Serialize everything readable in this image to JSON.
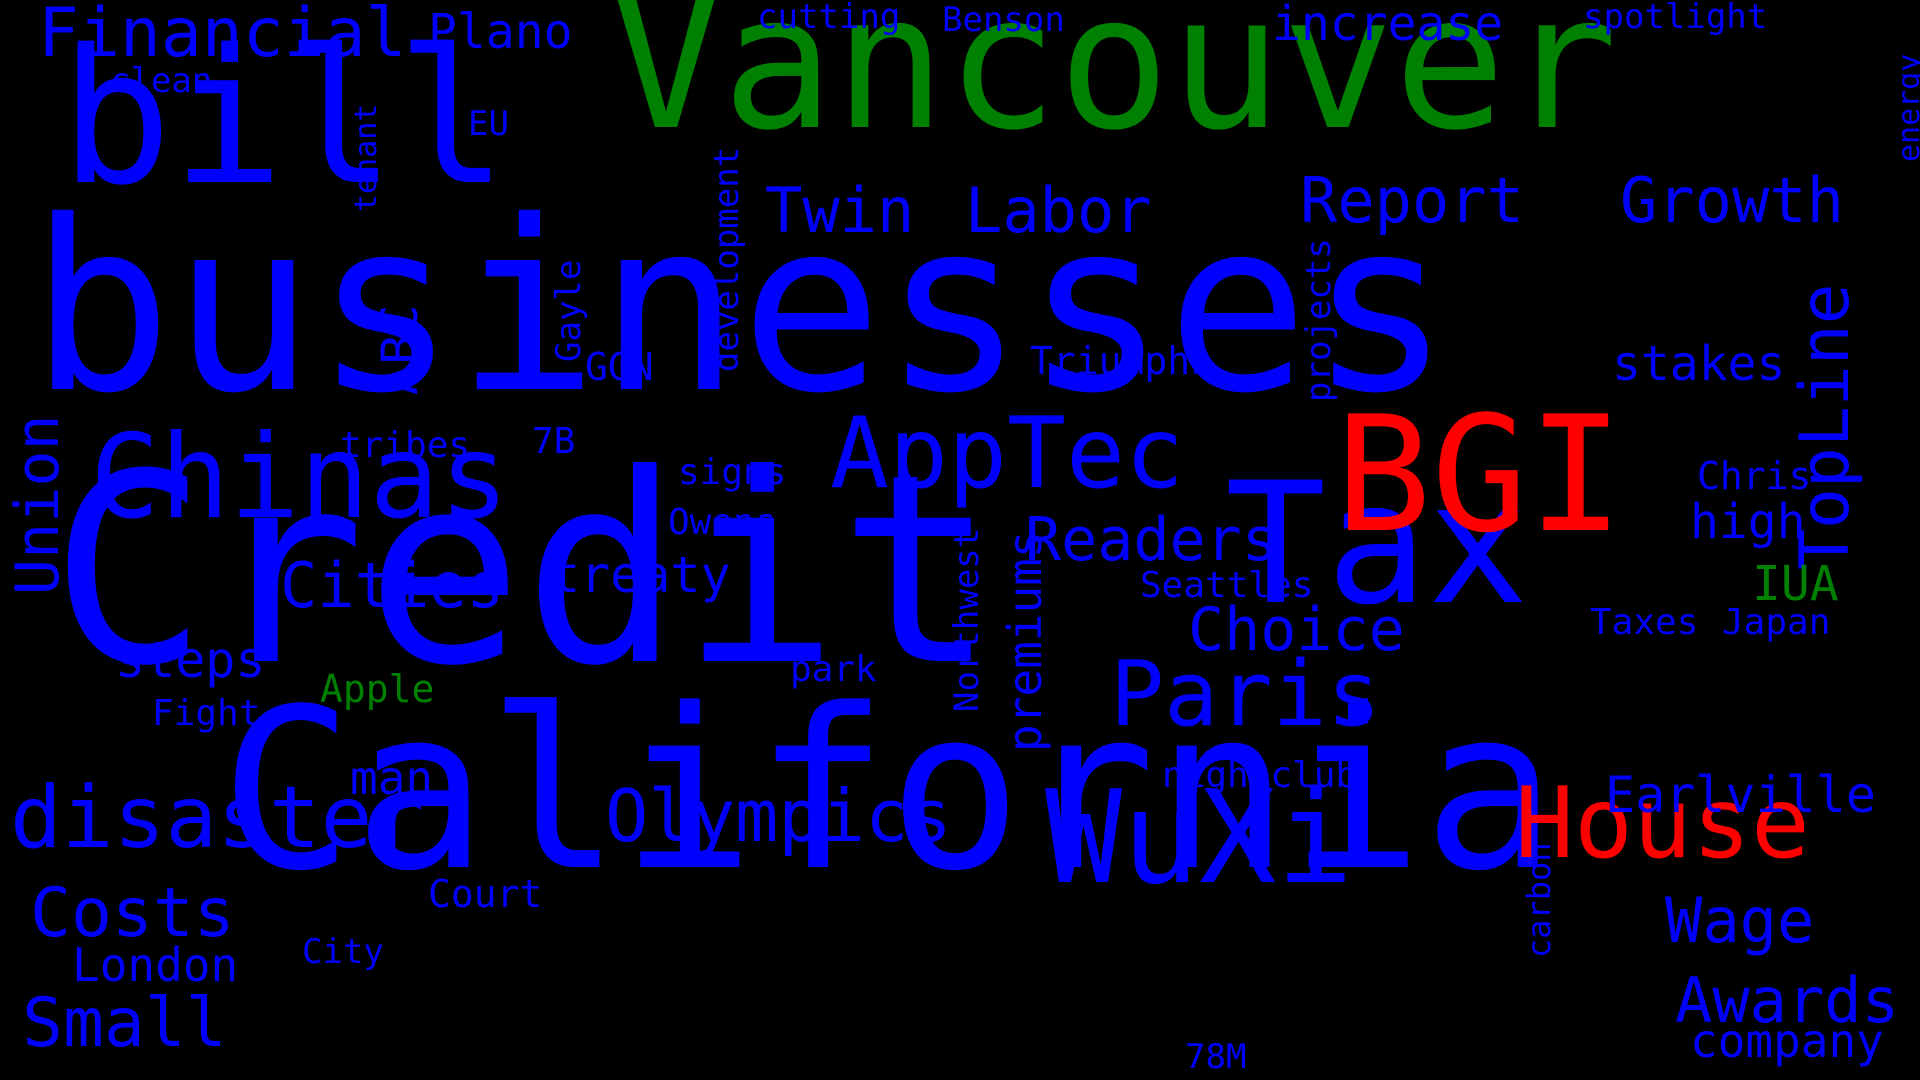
{
  "colors": {
    "background": "#000000",
    "blue": "#0000ff",
    "green": "#008000",
    "red": "#ff0000"
  },
  "words": [
    {
      "key": "businesses",
      "text": "businesses",
      "color": "blue"
    },
    {
      "key": "credit",
      "text": "Credit",
      "color": "blue"
    },
    {
      "key": "california",
      "text": "California",
      "color": "blue"
    },
    {
      "key": "vancouver",
      "text": "Vancouver",
      "color": "green"
    },
    {
      "key": "tax",
      "text": "Tax",
      "color": "blue"
    },
    {
      "key": "bill",
      "text": "bill",
      "color": "blue"
    },
    {
      "key": "bgi",
      "text": "BGI",
      "color": "red"
    },
    {
      "key": "chinas",
      "text": "Chinas",
      "color": "blue"
    },
    {
      "key": "wuxi",
      "text": "WuXi",
      "color": "blue"
    },
    {
      "key": "house",
      "text": "House",
      "color": "red"
    },
    {
      "key": "apptec",
      "text": "AppTec",
      "color": "blue"
    },
    {
      "key": "disaster",
      "text": "disaster",
      "color": "blue"
    },
    {
      "key": "paris",
      "text": "Paris",
      "color": "blue"
    },
    {
      "key": "olympics",
      "text": "Olympics",
      "color": "blue"
    },
    {
      "key": "financial",
      "text": "Financial",
      "color": "blue"
    },
    {
      "key": "topline",
      "text": "TopLine",
      "color": "blue"
    },
    {
      "key": "costs",
      "text": "Costs",
      "color": "blue"
    },
    {
      "key": "small",
      "text": "Small",
      "color": "blue"
    },
    {
      "key": "cities",
      "text": "Cities",
      "color": "blue"
    },
    {
      "key": "readers",
      "text": "Readers",
      "color": "blue"
    },
    {
      "key": "growth",
      "text": "Growth",
      "color": "blue"
    },
    {
      "key": "report",
      "text": "Report",
      "color": "blue"
    },
    {
      "key": "twin",
      "text": "Twin",
      "color": "blue"
    },
    {
      "key": "labor",
      "text": "Labor",
      "color": "blue"
    },
    {
      "key": "choice",
      "text": "Choice",
      "color": "blue"
    },
    {
      "key": "wage",
      "text": "Wage",
      "color": "blue"
    },
    {
      "key": "awards",
      "text": "Awards",
      "color": "blue"
    },
    {
      "key": "earlville",
      "text": "Earlville",
      "color": "blue"
    },
    {
      "key": "union",
      "text": "Union",
      "color": "blue"
    },
    {
      "key": "treaty",
      "text": "treaty",
      "color": "blue"
    },
    {
      "key": "steps",
      "text": "steps",
      "color": "blue"
    },
    {
      "key": "london",
      "text": "London",
      "color": "blue"
    },
    {
      "key": "increase",
      "text": "increase",
      "color": "blue"
    },
    {
      "key": "plano",
      "text": "Plano",
      "color": "blue"
    },
    {
      "key": "stakes",
      "text": "stakes",
      "color": "blue"
    },
    {
      "key": "company",
      "text": "company",
      "color": "blue"
    },
    {
      "key": "premiums",
      "text": "premiums",
      "color": "blue"
    },
    {
      "key": "high",
      "text": "high",
      "color": "blue"
    },
    {
      "key": "abc",
      "text": "ABC",
      "color": "blue"
    },
    {
      "key": "man",
      "text": "man",
      "color": "blue"
    },
    {
      "key": "iua",
      "text": "IUA",
      "color": "green"
    },
    {
      "key": "triumphs",
      "text": "Triumphs",
      "color": "blue"
    },
    {
      "key": "court",
      "text": "Court",
      "color": "blue"
    },
    {
      "key": "northwest",
      "text": "Northwest",
      "color": "blue"
    },
    {
      "key": "development",
      "text": "development",
      "color": "blue"
    },
    {
      "key": "projects",
      "text": "projects",
      "color": "blue"
    },
    {
      "key": "ggn",
      "text": "GGN",
      "color": "blue"
    },
    {
      "key": "gayle",
      "text": "Gayle",
      "color": "blue"
    },
    {
      "key": "chris",
      "text": "Chris",
      "color": "blue"
    },
    {
      "key": "seattles",
      "text": "Seattles",
      "color": "blue"
    },
    {
      "key": "nightclub",
      "text": "nightclub",
      "color": "blue"
    },
    {
      "key": "apple",
      "text": "Apple",
      "color": "green"
    },
    {
      "key": "fight",
      "text": "Fight",
      "color": "blue"
    },
    {
      "key": "signs",
      "text": "signs",
      "color": "blue"
    },
    {
      "key": "owens",
      "text": "Owens",
      "color": "blue"
    },
    {
      "key": "tribes",
      "text": "tribes",
      "color": "blue"
    },
    {
      "key": "7b",
      "text": "7B",
      "color": "blue"
    },
    {
      "key": "park",
      "text": "park",
      "color": "blue"
    },
    {
      "key": "taxes",
      "text": "Taxes",
      "color": "blue"
    },
    {
      "key": "japan",
      "text": "Japan",
      "color": "blue"
    },
    {
      "key": "city",
      "text": "City",
      "color": "blue"
    },
    {
      "key": "78m",
      "text": "78M",
      "color": "blue"
    },
    {
      "key": "carbon",
      "text": "carbon",
      "color": "blue"
    },
    {
      "key": "cutting",
      "text": "cutting",
      "color": "blue"
    },
    {
      "key": "benson",
      "text": "Benson",
      "color": "blue"
    },
    {
      "key": "spotlight",
      "text": "spotlight",
      "color": "blue"
    },
    {
      "key": "clean",
      "text": "clean",
      "color": "blue"
    },
    {
      "key": "eu",
      "text": "EU",
      "color": "blue"
    },
    {
      "key": "tenant",
      "text": "tenant",
      "color": "blue"
    },
    {
      "key": "energy",
      "text": "energy",
      "color": "blue"
    }
  ]
}
